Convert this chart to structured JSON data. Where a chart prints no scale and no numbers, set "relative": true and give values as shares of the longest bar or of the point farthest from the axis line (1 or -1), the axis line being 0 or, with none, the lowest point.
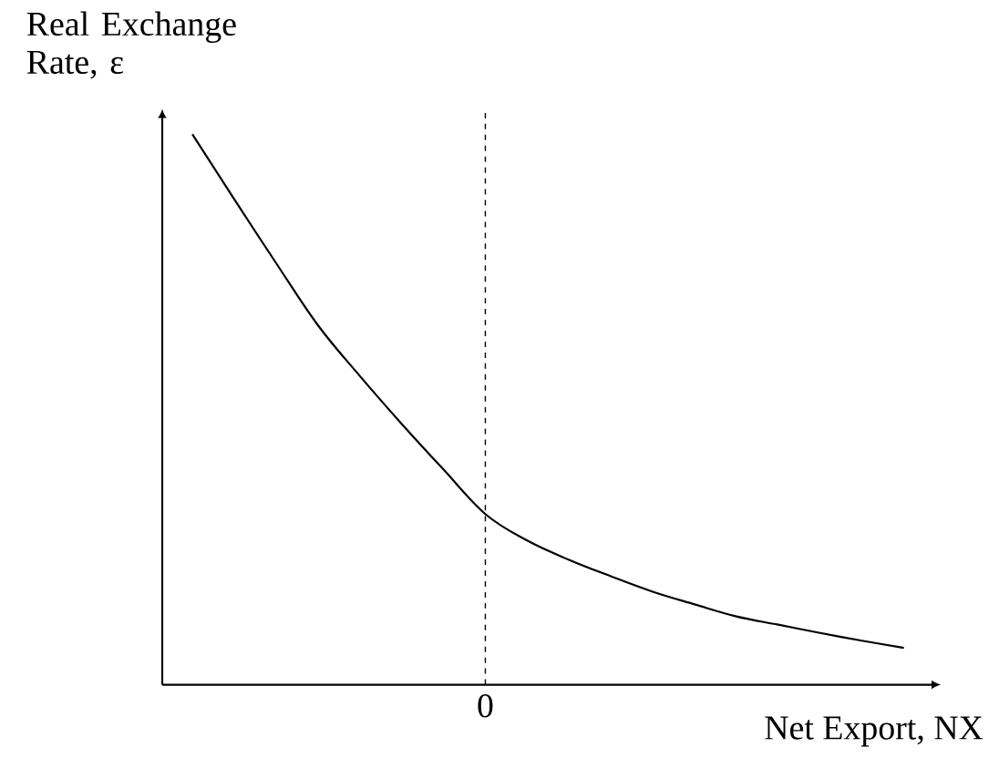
{
  "chart_data": {
    "type": "line",
    "relative": true,
    "xlabel": "Net Export, NX",
    "ylabel": "Real Exchange Rate, ε",
    "categories": [
      null,
      null,
      null,
      null,
      null,
      null,
      null,
      null,
      null,
      null,
      null,
      null,
      null,
      null,
      null,
      null,
      null,
      null
    ],
    "series": [
      {
        "color": "#000000",
        "values": [
          1,
          0.882,
          0.766,
          0.653,
          0.561,
          0.474,
          0.391,
          0.31,
          0.262,
          0.227,
          0.197,
          0.169,
          0.146,
          0.124,
          0.109,
          0.094,
          0.08,
          0.067
        ]
      }
    ],
    "annotations": [
      "0"
    ],
    "marker": "none",
    "line_style": "solid"
  }
}
